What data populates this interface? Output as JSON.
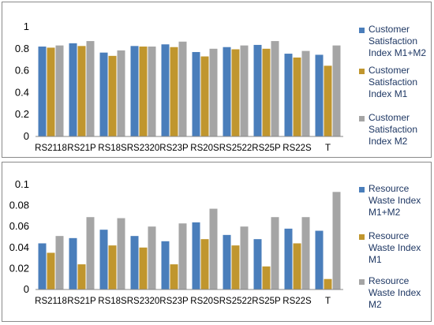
{
  "chart_data": [
    {
      "type": "bar",
      "categories": [
        "RS2118",
        "RS21P",
        "RS18S",
        "RS2320",
        "RS23P",
        "RS20S",
        "RS2522",
        "RS25P",
        "RS22S",
        "T"
      ],
      "ylim": [
        0,
        1
      ],
      "yticks": [
        "0",
        "0.2",
        "0.4",
        "0.6",
        "0.8",
        "1"
      ],
      "yticks_values": [
        0,
        0.2,
        0.4,
        0.6,
        0.8,
        1
      ],
      "grid": false,
      "legend_position": "right",
      "series": [
        {
          "name_lines": [
            "Customer",
            "Satisfaction",
            "Index M1+M2"
          ],
          "color": "#4a7ebb",
          "values": [
            0.82,
            0.85,
            0.765,
            0.825,
            0.84,
            0.77,
            0.815,
            0.835,
            0.755,
            0.745
          ]
        },
        {
          "name_lines": [
            "Customer",
            "Satisfaction",
            "Index M1"
          ],
          "color": "#c0962e",
          "values": [
            0.81,
            0.825,
            0.735,
            0.82,
            0.815,
            0.73,
            0.795,
            0.8,
            0.72,
            0.645
          ]
        },
        {
          "name_lines": [
            "Customer",
            "Satisfaction",
            "Index M2"
          ],
          "color": "#a5a5a5",
          "values": [
            0.83,
            0.87,
            0.785,
            0.82,
            0.865,
            0.8,
            0.83,
            0.87,
            0.78,
            0.83
          ]
        }
      ]
    },
    {
      "type": "bar",
      "categories": [
        "RS2118",
        "RS21P",
        "RS18S",
        "RS2320",
        "RS23P",
        "RS20S",
        "RS2522",
        "RS25P",
        "RS22S",
        "T"
      ],
      "ylim": [
        0,
        0.1
      ],
      "yticks": [
        "0",
        "0.02",
        "0.04",
        "0.06",
        "0.08",
        "0.1"
      ],
      "yticks_values": [
        0,
        0.02,
        0.04,
        0.06,
        0.08,
        0.1
      ],
      "grid": false,
      "legend_position": "right",
      "series": [
        {
          "name_lines": [
            "Resource",
            "Waste Index",
            "M1+M2"
          ],
          "color": "#4a7ebb",
          "values": [
            0.044,
            0.049,
            0.057,
            0.051,
            0.046,
            0.064,
            0.052,
            0.048,
            0.058,
            0.056
          ]
        },
        {
          "name_lines": [
            "Resource",
            "Waste Index",
            "M1"
          ],
          "color": "#c0962e",
          "values": [
            0.035,
            0.024,
            0.042,
            0.04,
            0.024,
            0.048,
            0.042,
            0.022,
            0.044,
            0.01
          ]
        },
        {
          "name_lines": [
            "Resource",
            "Waste Index",
            "M2"
          ],
          "color": "#a5a5a5",
          "values": [
            0.051,
            0.069,
            0.068,
            0.06,
            0.063,
            0.077,
            0.06,
            0.069,
            0.069,
            0.093
          ]
        }
      ]
    }
  ]
}
